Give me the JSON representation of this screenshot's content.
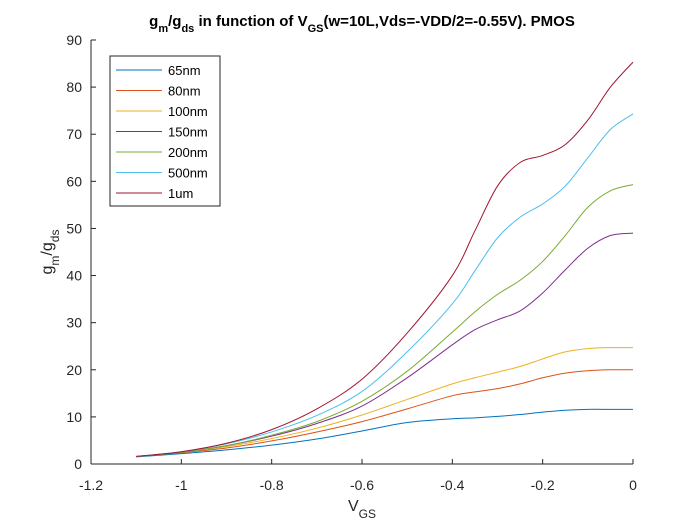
{
  "chart_data": {
    "type": "line",
    "title": {
      "p1": "g",
      "p1_sub": "m",
      "p2": "/g",
      "p2_sub": "ds",
      "p3": " in function of V",
      "p3_sub": "GS",
      "p4": "(w=10L,Vds=-VDD/2=-0.55V). PMOS"
    },
    "xlabel": {
      "main": "V",
      "sub": "GS"
    },
    "ylabel": {
      "p1": "g",
      "p1_sub": "m",
      "p2": "/g",
      "p2_sub": "ds"
    },
    "xlim": [
      -1.2,
      0
    ],
    "ylim": [
      0,
      90
    ],
    "xticks": [
      -1.2,
      -1,
      -0.8,
      -0.6,
      -0.4,
      -0.2,
      0
    ],
    "xtick_labels": [
      "-1.2",
      "-1",
      "-0.8",
      "-0.6",
      "-0.4",
      "-0.2",
      "0"
    ],
    "yticks": [
      0,
      10,
      20,
      30,
      40,
      50,
      60,
      70,
      80,
      90
    ],
    "ytick_labels": [
      "0",
      "10",
      "20",
      "30",
      "40",
      "50",
      "60",
      "70",
      "80",
      "90"
    ],
    "grid": false,
    "legend_position": "top-left",
    "x": [
      -1.1,
      -1.0,
      -0.9,
      -0.8,
      -0.7,
      -0.6,
      -0.5,
      -0.4,
      -0.35,
      -0.3,
      -0.25,
      -0.2,
      -0.15,
      -0.1,
      -0.05,
      0
    ],
    "series": [
      {
        "name": "65nm",
        "color": "#0072BD",
        "values": [
          1.5,
          2.2,
          3.0,
          4.0,
          5.3,
          7.0,
          8.8,
          9.6,
          9.8,
          10.1,
          10.5,
          11.0,
          11.4,
          11.6,
          11.6,
          11.6
        ]
      },
      {
        "name": "80nm",
        "color": "#D95319",
        "values": [
          1.6,
          2.4,
          3.4,
          4.9,
          6.8,
          9.0,
          11.7,
          14.5,
          15.3,
          16.0,
          17.0,
          18.3,
          19.3,
          19.8,
          20.0,
          20.0
        ]
      },
      {
        "name": "100nm",
        "color": "#EDB120",
        "values": [
          1.6,
          2.5,
          3.7,
          5.4,
          7.6,
          10.4,
          13.7,
          17.0,
          18.3,
          19.5,
          20.7,
          22.3,
          23.8,
          24.5,
          24.7,
          24.7
        ]
      },
      {
        "name": "150nm",
        "color": "#7E2F8E",
        "values": [
          1.6,
          2.5,
          3.9,
          5.9,
          8.6,
          12.3,
          18.3,
          25.3,
          28.5,
          30.6,
          32.5,
          36.3,
          41.2,
          45.8,
          48.5,
          49.0
        ]
      },
      {
        "name": "200nm",
        "color": "#77AC30",
        "values": [
          1.6,
          2.5,
          3.9,
          6.1,
          9.0,
          13.3,
          19.7,
          28.0,
          32.3,
          36.0,
          39.0,
          43.0,
          48.5,
          54.5,
          58.0,
          59.3
        ]
      },
      {
        "name": "500nm",
        "color": "#4DBEEE",
        "values": [
          1.6,
          2.6,
          4.3,
          6.8,
          10.3,
          15.4,
          23.8,
          34.0,
          41.0,
          48.0,
          52.4,
          55.2,
          59.0,
          65.0,
          71.0,
          74.3
        ]
      },
      {
        "name": "1um",
        "color": "#A2142F",
        "values": [
          1.6,
          2.6,
          4.4,
          7.3,
          11.7,
          18.0,
          27.8,
          40.0,
          49.5,
          59.0,
          64.0,
          65.5,
          67.8,
          73.0,
          80.0,
          85.3
        ]
      }
    ]
  }
}
